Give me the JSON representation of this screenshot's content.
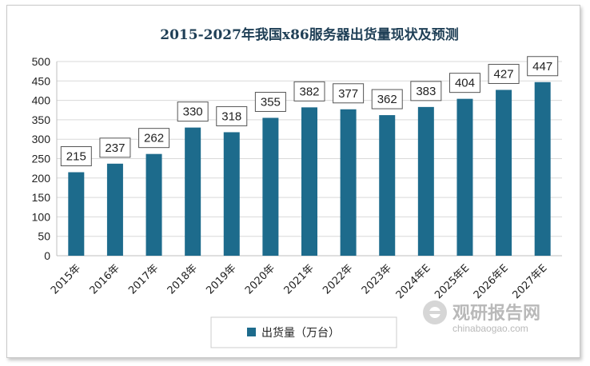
{
  "chart_data": {
    "type": "bar",
    "title": "2015-2027年我国x86服务器出货量现状及预测",
    "categories": [
      "2015年",
      "2016年",
      "2017年",
      "2018年",
      "2019年",
      "2020年",
      "2021年",
      "2022年",
      "2023年",
      "2024年E",
      "2025年E",
      "2026年E",
      "2027年E"
    ],
    "series": [
      {
        "name": "出货量（万台）",
        "values": [
          215,
          237,
          262,
          330,
          318,
          355,
          382,
          377,
          362,
          383,
          404,
          427,
          447
        ]
      }
    ],
    "yticks": [
      0,
      50,
      100,
      150,
      200,
      250,
      300,
      350,
      400,
      450,
      500
    ],
    "ylim": [
      0,
      500
    ],
    "grid": true,
    "legend_position": "bottom",
    "colors": {
      "bar": "#1d6b8c",
      "title": "#1f3f56"
    }
  },
  "watermark": {
    "brand": "观研报告网",
    "url": "chinabaogao.com"
  }
}
